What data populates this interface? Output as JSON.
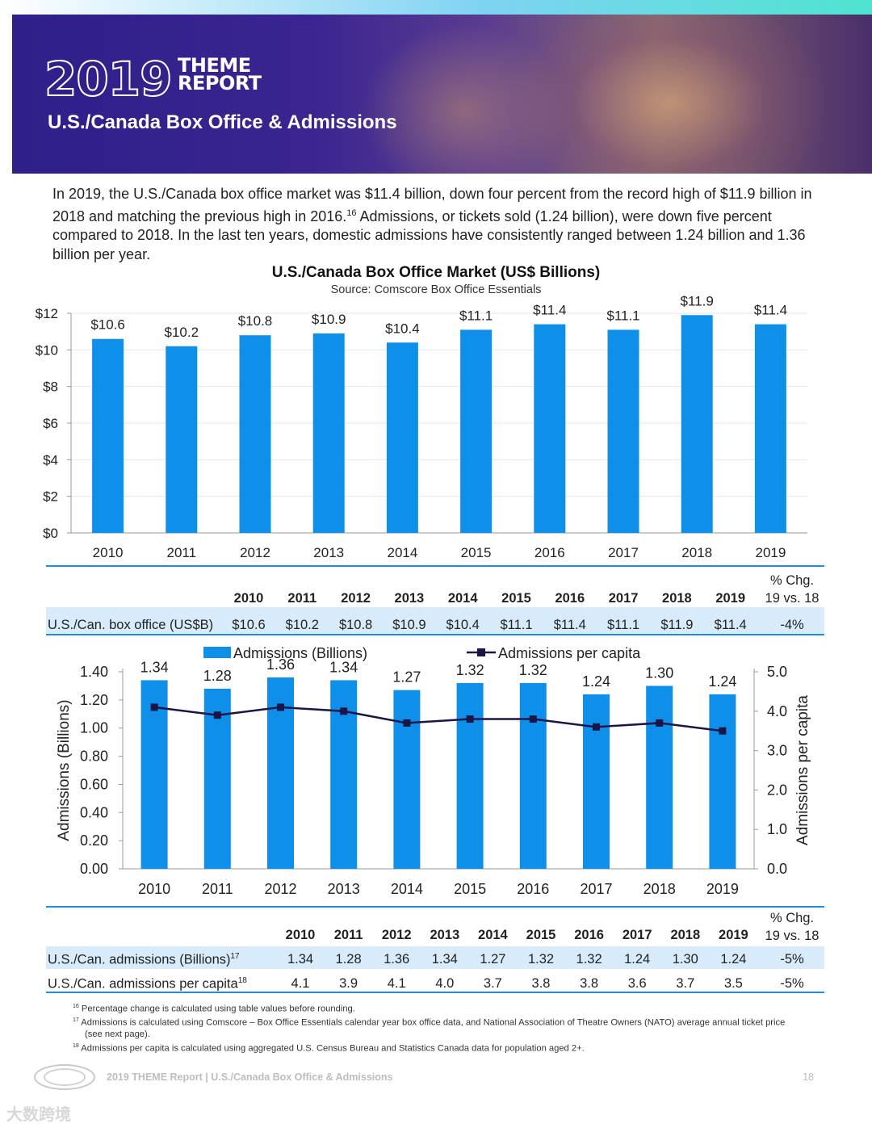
{
  "header": {
    "logo_year": "2019",
    "logo_word_line1": "THEME",
    "logo_word_line2": "REPORT",
    "subtitle": "U.S./Canada Box Office & Admissions"
  },
  "intro": {
    "part1": "In 2019, the U.S./Canada box office market was $11.4 billion, down four percent from the record high of $11.9 billion in 2018 and matching the previous high in 2016.",
    "sup": "16",
    "part2": " Admissions, or tickets sold (1.24 billion), were down five percent compared to 2018. In the last ten years, domestic admissions have consistently ranged between 1.24 billion and 1.36 billion per year."
  },
  "chart_data": [
    {
      "type": "bar",
      "title": "U.S./Canada Box Office Market (US$ Billions)",
      "subtitle": "Source: Comscore Box Office Essentials",
      "categories": [
        "2010",
        "2011",
        "2012",
        "2013",
        "2014",
        "2015",
        "2016",
        "2017",
        "2018",
        "2019"
      ],
      "values": [
        10.6,
        10.2,
        10.8,
        10.9,
        10.4,
        11.1,
        11.4,
        11.1,
        11.9,
        11.4
      ],
      "data_labels": [
        "$10.6",
        "$10.2",
        "$10.8",
        "$10.9",
        "$10.4",
        "$11.1",
        "$11.4",
        "$11.1",
        "$11.9",
        "$11.4"
      ],
      "ylim": [
        0,
        12
      ],
      "yticks": [
        "$0",
        "$2",
        "$4",
        "$6",
        "$8",
        "$10",
        "$12"
      ],
      "color": "#0e8fea"
    },
    {
      "type": "bar+line",
      "categories": [
        "2010",
        "2011",
        "2012",
        "2013",
        "2014",
        "2015",
        "2016",
        "2017",
        "2018",
        "2019"
      ],
      "series": [
        {
          "name": "Admissions (Billions)",
          "type": "bar",
          "axis": "left",
          "values": [
            1.34,
            1.28,
            1.36,
            1.34,
            1.27,
            1.32,
            1.32,
            1.24,
            1.3,
            1.24
          ],
          "data_labels": [
            "1.34",
            "1.28",
            "1.36",
            "1.34",
            "1.27",
            "1.32",
            "1.32",
            "1.24",
            "1.30",
            "1.24"
          ]
        },
        {
          "name": "Admissions per capita",
          "type": "line",
          "axis": "right",
          "values": [
            4.1,
            3.9,
            4.1,
            4.0,
            3.7,
            3.8,
            3.8,
            3.6,
            3.7,
            3.5
          ]
        }
      ],
      "ylabel": "Admissions (Billions)",
      "y2label": "Admissions per capita",
      "ylim": [
        0,
        1.4
      ],
      "yticks": [
        "0.00",
        "0.20",
        "0.40",
        "0.60",
        "0.80",
        "1.00",
        "1.20",
        "1.40"
      ],
      "y2lim": [
        0,
        5.0
      ],
      "y2ticks": [
        "0.0",
        "1.0",
        "2.0",
        "3.0",
        "4.0",
        "5.0"
      ],
      "legend_position": "top",
      "bar_color": "#0e8fea",
      "line_color": "#1b1446"
    }
  ],
  "table1": {
    "pct_header_line1": "% Chg.",
    "pct_header_line2": "19 vs. 18",
    "years": [
      "2010",
      "2011",
      "2012",
      "2013",
      "2014",
      "2015",
      "2016",
      "2017",
      "2018",
      "2019"
    ],
    "row_label": "U.S./Can. box office (US$B)",
    "values": [
      "$10.6",
      "$10.2",
      "$10.8",
      "$10.9",
      "$10.4",
      "$11.1",
      "$11.4",
      "$11.1",
      "$11.9",
      "$11.4"
    ],
    "pct": "-4%"
  },
  "table2": {
    "pct_header_line1": "% Chg.",
    "pct_header_line2": "19 vs. 18",
    "years": [
      "2010",
      "2011",
      "2012",
      "2013",
      "2014",
      "2015",
      "2016",
      "2017",
      "2018",
      "2019"
    ],
    "rows": [
      {
        "label": "U.S./Can. admissions (Billions)",
        "sup": "17",
        "values": [
          "1.34",
          "1.28",
          "1.36",
          "1.34",
          "1.27",
          "1.32",
          "1.32",
          "1.24",
          "1.30",
          "1.24"
        ],
        "pct": "-5%"
      },
      {
        "label": "U.S./Can. admissions per capita",
        "sup": "18",
        "values": [
          "4.1",
          "3.9",
          "4.1",
          "4.0",
          "3.7",
          "3.8",
          "3.8",
          "3.6",
          "3.7",
          "3.5"
        ],
        "pct": "-5%"
      }
    ]
  },
  "footnotes": [
    {
      "num": "16",
      "text": " Percentage change is calculated using table values before rounding."
    },
    {
      "num": "17",
      "text": " Admissions is calculated using Comscore – Box Office Essentials calendar year box office data, and National Association of Theatre Owners (NATO) average annual ticket price (see next page)."
    },
    {
      "num": "18",
      "text": " Admissions per capita is calculated using aggregated U.S. Census Bureau and Statistics Canada data for population aged 2+."
    }
  ],
  "footer": {
    "text": "2019 THEME Report | U.S./Canada Box Office & Admissions",
    "page": "18"
  },
  "watermark": "大数跨境"
}
